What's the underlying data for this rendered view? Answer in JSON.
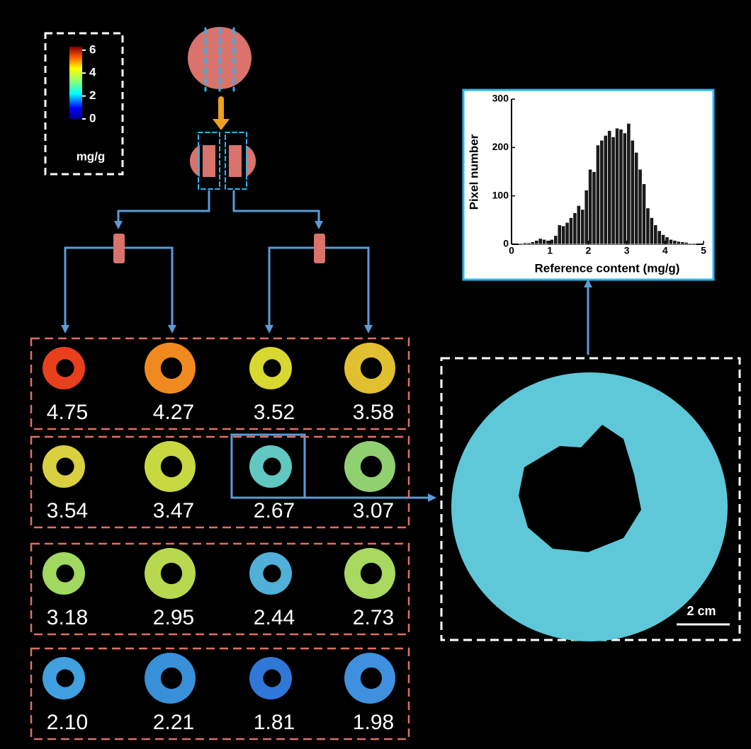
{
  "colorbar": {
    "lim": [
      0,
      6.3
    ],
    "ticks": [
      0,
      2,
      4,
      6
    ],
    "unit": "mg/g"
  },
  "histogram": {
    "xlabel": "Reference content (mg/g)",
    "ylabel": "Pixel number",
    "xlim": [
      0,
      5
    ],
    "ylim": [
      0,
      300
    ],
    "xticks": [
      0,
      1,
      2,
      3,
      4,
      5
    ],
    "yticks": [
      0,
      100,
      200,
      300
    ],
    "color": "#1a1a1a",
    "bins": [
      0.2,
      0.3,
      0.4,
      0.5,
      0.6,
      0.7,
      0.8,
      0.9,
      1.0,
      1.1,
      1.2,
      1.3,
      1.4,
      1.5,
      1.6,
      1.7,
      1.8,
      1.9,
      2.0,
      2.1,
      2.2,
      2.3,
      2.4,
      2.5,
      2.6,
      2.7,
      2.8,
      2.9,
      3.0,
      3.1,
      3.2,
      3.3,
      3.4,
      3.5,
      3.6,
      3.7,
      3.8,
      3.9,
      4.0,
      4.1,
      4.2,
      4.3,
      4.4,
      4.5,
      4.6,
      4.7,
      4.8
    ],
    "counts": [
      2,
      3,
      3,
      5,
      8,
      12,
      10,
      8,
      10,
      18,
      40,
      38,
      45,
      55,
      65,
      80,
      72,
      112,
      155,
      150,
      205,
      215,
      225,
      235,
      222,
      240,
      238,
      230,
      250,
      215,
      190,
      155,
      125,
      75,
      55,
      40,
      28,
      20,
      15,
      10,
      8,
      6,
      5,
      4,
      2,
      2
    ]
  },
  "rings": {
    "rows": [
      [
        "4.75",
        "4.27",
        "3.52",
        "3.58"
      ],
      [
        "3.54",
        "3.47",
        "2.67",
        "3.07"
      ],
      [
        "3.18",
        "2.95",
        "2.44",
        "2.73"
      ],
      [
        "2.10",
        "2.21",
        "1.81",
        "1.98"
      ]
    ]
  },
  "scale_bar": "2 cm"
}
